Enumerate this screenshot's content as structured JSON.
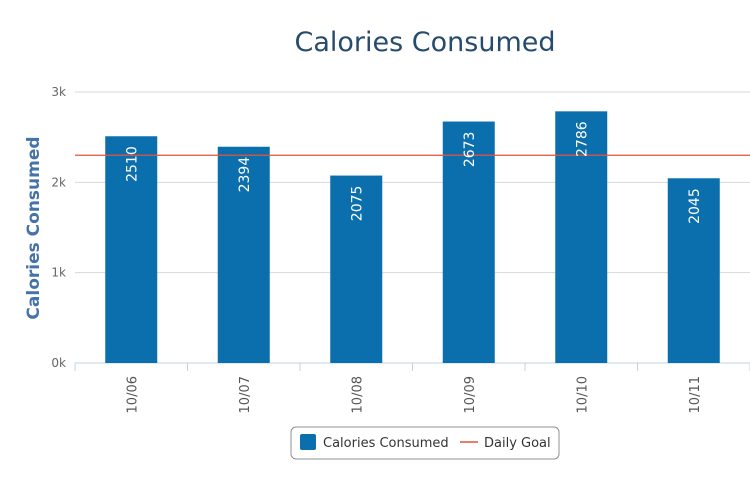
{
  "chart_data": {
    "type": "bar",
    "title": "Calories Consumed",
    "xlabel": "",
    "ylabel": "Calories Consumed",
    "categories": [
      "10/06",
      "10/07",
      "10/08",
      "10/09",
      "10/10",
      "10/11"
    ],
    "series": [
      {
        "name": "Calories Consumed",
        "type": "bar",
        "color": "#0b6fad",
        "values": [
          2510,
          2394,
          2075,
          2673,
          2786,
          2045
        ]
      },
      {
        "name": "Daily Goal",
        "type": "line",
        "color": "#e8503a",
        "value": 2300
      }
    ],
    "ylim": [
      0,
      3000
    ],
    "yticks": [
      0,
      1000,
      2000,
      3000
    ],
    "ytick_labels": [
      "0k",
      "1k",
      "2k",
      "3k"
    ],
    "grid": true,
    "legend": "bottom-center"
  }
}
